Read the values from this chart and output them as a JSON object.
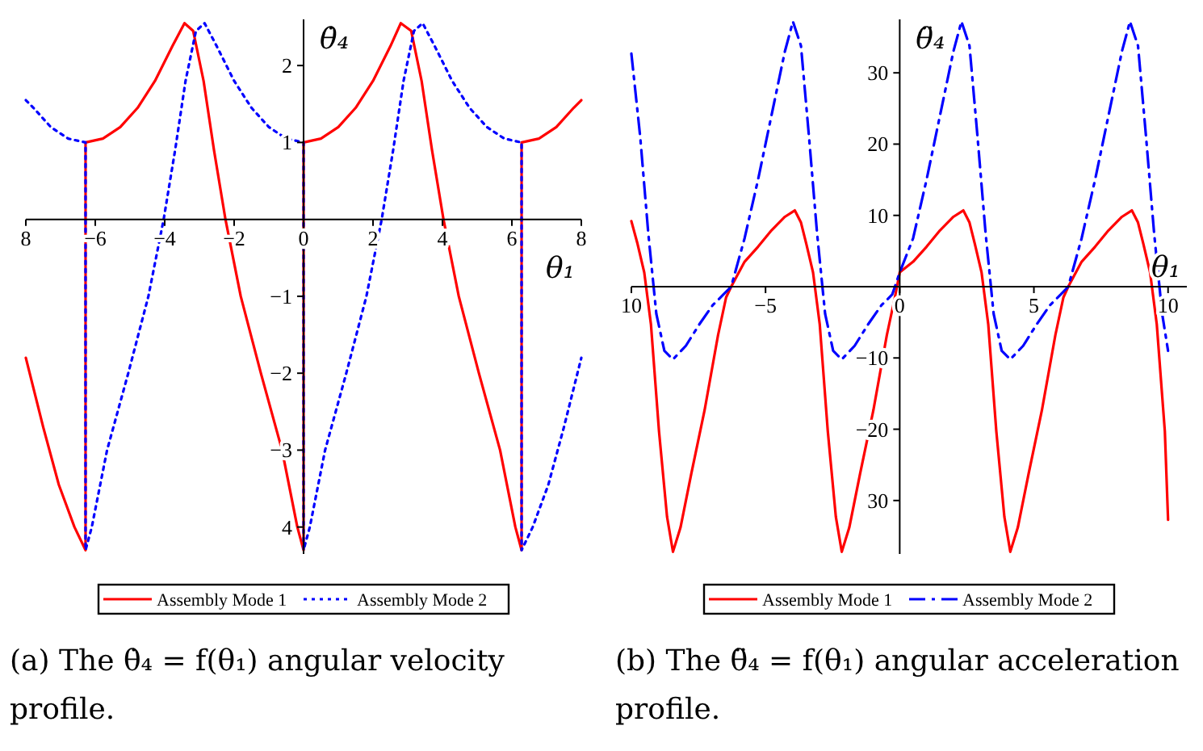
{
  "chart_data": [
    {
      "type": "line",
      "xlabel": "θ₁",
      "ylabel": "θ̇₄",
      "xlim": [
        -8,
        8
      ],
      "ylim": [
        -4.35,
        2.6
      ],
      "xticks": [
        {
          "value": -8,
          "label": "8"
        },
        -6,
        -4,
        -2,
        0,
        2,
        4,
        6,
        8
      ],
      "yticks": [
        2,
        1,
        -1,
        -2,
        -3,
        {
          "value": -4,
          "label": "4"
        }
      ],
      "legend": "bottom",
      "annotations": [
        "(a) The θ̇₄ = f(θ₁) angular velocity profile."
      ],
      "series": [
        {
          "name": "Assembly Mode 1",
          "color": "#ff0000",
          "line_style": "solid",
          "x": [
            -8,
            -7.5,
            -7.05,
            -6.6,
            -6.28,
            -6.28,
            -5.78,
            -5.28,
            -4.78,
            -4.28,
            -3.78,
            -3.43,
            -3.18,
            -2.88,
            -2.58,
            -2.25,
            -1.81,
            -1.23,
            -0.62,
            -0.18,
            0,
            0,
            0.5,
            1,
            1.5,
            2,
            2.5,
            2.8,
            3.1,
            3.4,
            3.7,
            4.03,
            4.47,
            5.05,
            5.66,
            6.1,
            6.28,
            6.28,
            6.78,
            7.28,
            7.78,
            8
          ],
          "values": [
            -1.8,
            -2.7,
            -3.45,
            -4,
            -4.3,
            1,
            1.05,
            1.2,
            1.45,
            1.8,
            2.25,
            2.55,
            2.45,
            1.8,
            0.9,
            0,
            -1,
            -2,
            -3,
            -4,
            -4.3,
            1,
            1.05,
            1.2,
            1.45,
            1.8,
            2.25,
            2.55,
            2.45,
            1.8,
            0.9,
            0,
            -1,
            -2,
            -3,
            -4,
            -4.3,
            1,
            1.05,
            1.2,
            1.45,
            1.55
          ]
        },
        {
          "name": "Assembly Mode 2",
          "color": "#0000ff",
          "line_style": "dotted",
          "x": [
            -8,
            -7.78,
            -7.28,
            -6.78,
            -6.28,
            -6.28,
            -6.1,
            -5.66,
            -5.05,
            -4.47,
            -4.03,
            -3.7,
            -3.4,
            -3.1,
            -2.85,
            -2.5,
            -2,
            -1.5,
            -1,
            -0.5,
            0,
            0,
            0.18,
            0.62,
            1.23,
            1.81,
            2.25,
            2.58,
            2.88,
            3.18,
            3.43,
            3.78,
            4.28,
            4.78,
            5.28,
            5.78,
            6.28,
            6.28,
            6.6,
            7.05,
            7.5,
            8
          ],
          "values": [
            1.55,
            1.45,
            1.2,
            1.05,
            1,
            -4.3,
            -4,
            -3,
            -2,
            -1,
            0,
            0.9,
            1.8,
            2.45,
            2.55,
            2.25,
            1.8,
            1.45,
            1.2,
            1.05,
            1,
            -4.3,
            -4,
            -3,
            -2,
            -1,
            0,
            0.9,
            1.8,
            2.45,
            2.55,
            2.25,
            1.8,
            1.45,
            1.2,
            1.05,
            1,
            -4.3,
            -4,
            -3.45,
            -2.7,
            -1.8
          ]
        }
      ]
    },
    {
      "type": "line",
      "xlabel": "θ₁",
      "ylabel": "θ̈₄",
      "xlim": [
        -10,
        10.7
      ],
      "ylim": [
        -37.5,
        37.5
      ],
      "xticks": [
        {
          "value": -10,
          "label": "10"
        },
        -5,
        0,
        5,
        10
      ],
      "yticks": [
        30,
        20,
        10,
        -10,
        -20,
        {
          "value": -30,
          "label": "30"
        }
      ],
      "legend": "bottom",
      "annotations": [
        "(b) The θ̈₄ = f(θ₁) angular acceleration profile."
      ],
      "series": [
        {
          "name": "Assembly Mode 1",
          "color": "#ff0000",
          "line_style": "solid",
          "x": [
            -10,
            -9.77,
            -9.52,
            -9.27,
            -8.97,
            -8.67,
            -8.45,
            -8.17,
            -7.77,
            -7.27,
            -6.77,
            -6.47,
            -6.28,
            -5.78,
            -5.28,
            -4.78,
            -4.28,
            -3.91,
            -3.68,
            -3.48,
            -3.23,
            -2.98,
            -2.68,
            -2.38,
            -2.16,
            -1.88,
            -1.48,
            -0.98,
            -0.48,
            -0.18,
            0,
            0.5,
            1,
            1.5,
            2,
            2.37,
            2.6,
            2.8,
            3.05,
            3.3,
            3.6,
            3.9,
            4.12,
            4.4,
            4.8,
            5.3,
            5.8,
            6.1,
            6.28,
            6.78,
            7.28,
            7.78,
            8.28,
            8.65,
            8.88,
            9.08,
            9.33,
            9.58,
            9.88,
            10
          ],
          "values": [
            9.2,
            6,
            2,
            -5.3,
            -20.3,
            -32.3,
            -37.2,
            -33.8,
            -26.3,
            -17.3,
            -6.8,
            -1.5,
            0,
            3.5,
            5.6,
            7.9,
            9.8,
            10.7,
            9,
            6,
            2,
            -5.3,
            -20.3,
            -32.3,
            -37.2,
            -33.8,
            -26.3,
            -17.3,
            -6.8,
            -1.5,
            2,
            3.5,
            5.6,
            7.9,
            9.8,
            10.7,
            9,
            6,
            2,
            -5.3,
            -20.3,
            -32.3,
            -37.2,
            -33.8,
            -26.3,
            -17.3,
            -6.8,
            -1.5,
            0,
            3.5,
            5.6,
            7.9,
            9.8,
            10.7,
            9,
            6,
            2,
            -5.3,
            -20.3,
            -32.7
          ]
        },
        {
          "name": "Assembly Mode 2",
          "color": "#0000ff",
          "line_style": "dashdot",
          "x": [
            -10,
            -9.67,
            -9.37,
            -9.07,
            -8.77,
            -8.45,
            -7.97,
            -7.47,
            -6.97,
            -6.57,
            -6.28,
            -5.78,
            -5.28,
            -4.78,
            -4.28,
            -3.98,
            -3.68,
            -3.38,
            -3.08,
            -2.78,
            -2.48,
            -2.16,
            -1.68,
            -1.18,
            -0.68,
            -0.28,
            0,
            0.5,
            1,
            1.5,
            2,
            2.3,
            2.6,
            2.9,
            3.2,
            3.5,
            3.8,
            4.12,
            4.6,
            5.1,
            5.6,
            6,
            6.28,
            6.78,
            7.28,
            7.78,
            8.28,
            8.58,
            8.88,
            9.18,
            9.48,
            9.78,
            10
          ],
          "values": [
            32.7,
            21,
            7.5,
            -3.8,
            -9,
            -10.2,
            -8.3,
            -5.3,
            -2.6,
            -1.1,
            0,
            6.8,
            15,
            24,
            33,
            37.2,
            33.8,
            21,
            7.5,
            -3.8,
            -9,
            -10.2,
            -8.3,
            -5.3,
            -2.6,
            -1.1,
            2,
            6.8,
            15,
            24,
            33,
            37.2,
            33.8,
            21,
            7.5,
            -3.8,
            -9,
            -10.2,
            -8.3,
            -5.3,
            -2.6,
            -1.1,
            0,
            6.8,
            15,
            24,
            33,
            37.2,
            33.8,
            21,
            7.5,
            -3.8,
            -9
          ]
        }
      ]
    }
  ]
}
